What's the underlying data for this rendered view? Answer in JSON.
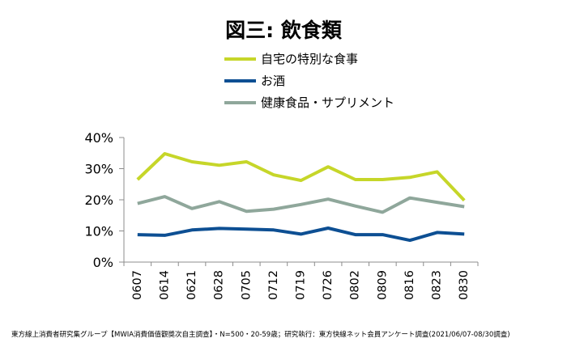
{
  "chart_data": {
    "type": "line",
    "title": "図三: 飲食類",
    "categories": [
      "0607",
      "0614",
      "0621",
      "0628",
      "0705",
      "0712",
      "0719",
      "0726",
      "0802",
      "0809",
      "0816",
      "0823",
      "0830"
    ],
    "ylim": [
      0,
      40
    ],
    "yticks": [
      "0%",
      "10%",
      "20%",
      "30%",
      "40%"
    ],
    "grid": false,
    "legend_position": "top",
    "series": [
      {
        "name": "自宅の特別な食事",
        "color": "#c6d629",
        "values": [
          26.5,
          34.8,
          32.2,
          31.1,
          32.2,
          28.0,
          26.2,
          30.6,
          26.5,
          26.5,
          27.2,
          29.0,
          19.8
        ]
      },
      {
        "name": "お酒",
        "color": "#0d4f93",
        "values": [
          8.8,
          8.6,
          10.3,
          10.8,
          10.6,
          10.3,
          9.0,
          10.9,
          8.8,
          8.8,
          7.0,
          9.5,
          9.0
        ]
      },
      {
        "name": "健康食品・サプリメント",
        "color": "#8fa79b",
        "values": [
          18.8,
          21.0,
          17.2,
          19.4,
          16.3,
          17.0,
          18.5,
          20.2,
          18.0,
          16.0,
          20.6,
          19.2,
          17.8
        ]
      }
    ]
  },
  "footnote": "東方線上消費者研究集グループ【MWIA消費価值觀獎次自主調查】・N=500・20-59歳；研究執行：東方快線ネット会員アンケート調査(2021/06/07-08/30調査)"
}
